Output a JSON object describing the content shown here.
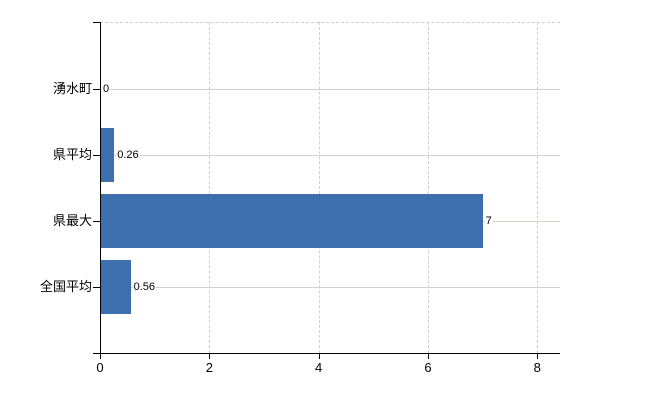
{
  "chart_data": {
    "type": "bar",
    "orientation": "horizontal",
    "title": "",
    "xlabel": "",
    "ylabel": "",
    "categories": [
      "湧水町",
      "県平均",
      "県最大",
      "全国平均"
    ],
    "values": [
      0,
      0.26,
      7,
      0.56
    ],
    "value_labels": [
      "0",
      "0.26",
      "7",
      "0.56"
    ],
    "x_ticks": [
      "0",
      "2",
      "4",
      "6",
      "8"
    ],
    "x_tick_values": [
      0,
      2,
      4,
      6,
      8
    ],
    "xlim": [
      0,
      8.42
    ],
    "legend": "none",
    "grid": {
      "horizontal": "solid at category centers",
      "vertical": "dashed at ticks 2,4,6,8",
      "top_border": "dashed"
    }
  },
  "colors": {
    "bar": "#3d6fae",
    "h_grid": "#ccd8cc",
    "v_grid": "#d0d0d0",
    "axis": "#000000",
    "background": "#ffffff",
    "text": "#000000"
  }
}
